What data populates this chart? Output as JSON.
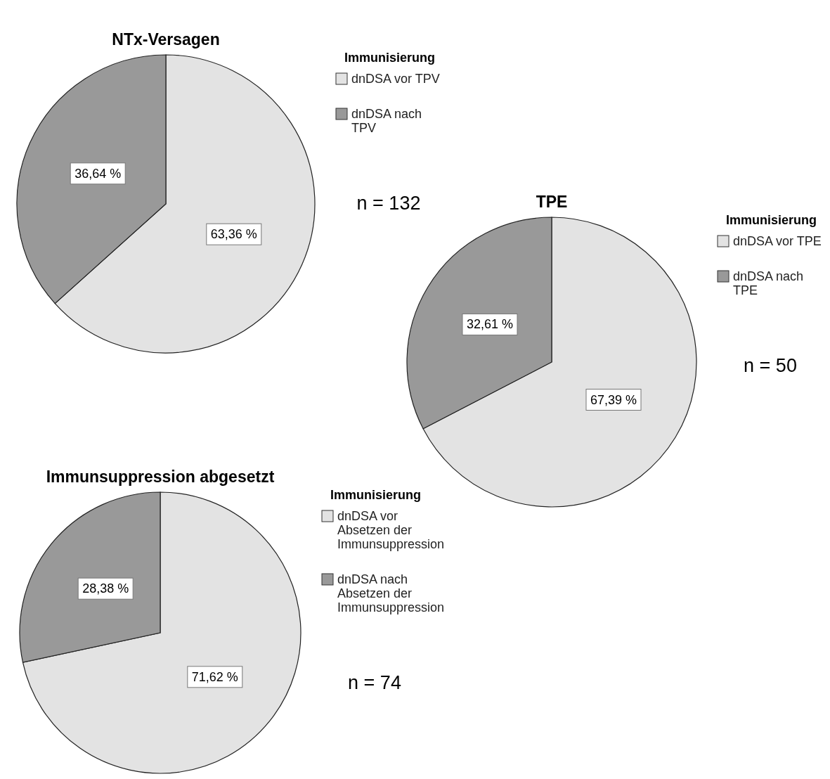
{
  "chart_data": [
    {
      "type": "pie",
      "title": "NTx-Versagen",
      "legend_title": "Immunisierung",
      "legend": "right",
      "categories": [
        "dnDSA vor TPV",
        "dnDSA nach TPV"
      ],
      "values": [
        63.36,
        36.64
      ],
      "colors": [
        "#e3e3e3",
        "#999999"
      ],
      "value_labels": [
        "63,36 %",
        "36,64 %"
      ],
      "annotations": [
        "n = 132"
      ]
    },
    {
      "type": "pie",
      "title": "TPE",
      "legend_title": "Immunisierung",
      "legend": "right",
      "categories": [
        "dnDSA vor TPE",
        "dnDSA nach TPE"
      ],
      "values": [
        67.39,
        32.61
      ],
      "colors": [
        "#e3e3e3",
        "#999999"
      ],
      "value_labels": [
        "67,39 %",
        "32,61 %"
      ],
      "annotations": [
        "n = 50"
      ]
    },
    {
      "type": "pie",
      "title": "Immunsuppression abgesetzt",
      "legend_title": "Immunisierung",
      "legend": "right",
      "categories": [
        "dnDSA vor Absetzen der Immunsuppression",
        "dnDSA nach Absetzen der Immunsuppression"
      ],
      "values": [
        71.62,
        28.38
      ],
      "colors": [
        "#e3e3e3",
        "#999999"
      ],
      "value_labels": [
        "71,62 %",
        "28,38 %"
      ],
      "annotations": [
        "n = 74"
      ]
    }
  ]
}
